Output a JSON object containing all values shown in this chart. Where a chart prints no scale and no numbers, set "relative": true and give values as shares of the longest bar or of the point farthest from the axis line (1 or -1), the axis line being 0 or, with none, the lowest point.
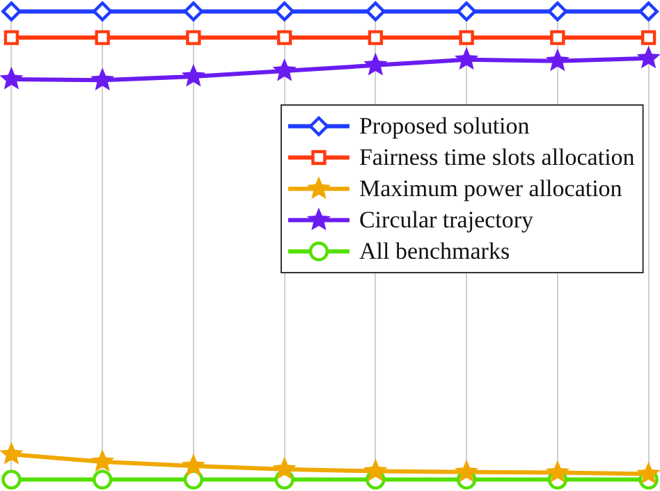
{
  "chart_data": {
    "type": "line",
    "relative": true,
    "categories": [
      null,
      null,
      null,
      null,
      null,
      null,
      null,
      null
    ],
    "grid": "x",
    "legend": "right",
    "series": [
      {
        "name": "Proposed solution",
        "color": "#1f3cff",
        "marker": "diamond",
        "values": [
          1,
          1,
          1,
          1,
          1,
          1,
          1,
          1
        ]
      },
      {
        "name": "Fairness time slots allocation",
        "color": "#ff3a10",
        "marker": "square",
        "values": [
          0.944,
          0.944,
          0.944,
          0.944,
          0.944,
          0.944,
          0.944,
          0.944
        ]
      },
      {
        "name": "Maximum power allocation",
        "color": "#f0a800",
        "marker": "star",
        "values": [
          0.054,
          0.038,
          0.029,
          0.022,
          0.018,
          0.016,
          0.015,
          0.012
        ]
      },
      {
        "name": "Circular trajectory",
        "color": "#6a1cf0",
        "marker": "star",
        "values": [
          0.855,
          0.853,
          0.861,
          0.873,
          0.885,
          0.897,
          0.894,
          0.9
        ]
      },
      {
        "name": "All benchmarks",
        "color": "#55e000",
        "marker": "circle",
        "values": [
          0,
          0,
          0,
          0,
          0,
          0,
          0,
          0
        ]
      }
    ]
  }
}
